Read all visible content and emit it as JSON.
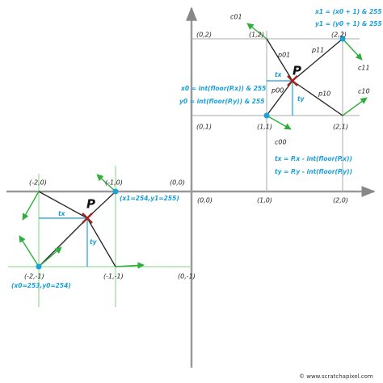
{
  "axis_labels": {
    "origin": "(0,0)",
    "one_zero": "(1,0)",
    "two_zero": "(2,0)"
  },
  "cell_top": {
    "x1_formula": "x1 = (x0 + 1) & 255",
    "y1_formula": "y1 = (y0 + 1) & 255",
    "c01": "c01",
    "c11": "c11",
    "c10": "c10",
    "c00": "c00",
    "p01": "p01",
    "p11": "p11",
    "p00": "p00",
    "p10": "p10",
    "point": "P",
    "corner_02": "(0,2)",
    "corner_12": "(1,2)",
    "corner_22": "(2,2)",
    "corner_01": "(0,1)",
    "corner_11": "(1,1)",
    "corner_21": "(2,1)",
    "tx": "tx",
    "ty": "ty",
    "x0_formula": "x0 = int(floor(P.x)) & 255",
    "y0_formula": "y0 = int(floor(P.y)) & 255",
    "tx_formula": "tx = P.x - int(floor(P.x))",
    "ty_formula": "ty = P.y - int(floor(P.y))"
  },
  "cell_left": {
    "corner_m20": "(-2,0)",
    "corner_m10": "(-1,0)",
    "corner_00": "(0,0)",
    "point": "P",
    "x1y1_note": "(x1=254,y1=255)",
    "tx": "tx",
    "ty": "ty",
    "corner_m2m1": "(-2,-1)",
    "corner_m1m1": "(-1,-1)",
    "corner_0m1": "(0,-1)",
    "x0y0_note": "(x0=253,y0=254)"
  },
  "footer": "© www.scratchapixel.com"
}
